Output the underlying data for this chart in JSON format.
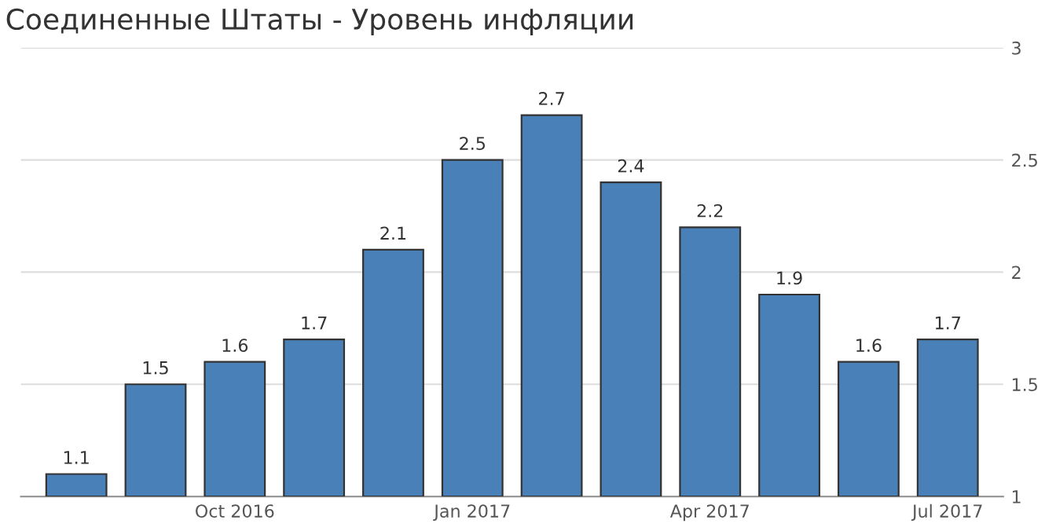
{
  "chart_data": {
    "type": "bar",
    "title": "Соединенные Штаты - Уровень инфляции",
    "categories": [
      null,
      null,
      "Oct 2016",
      null,
      null,
      "Jan 2017",
      null,
      null,
      "Apr 2017",
      null,
      null,
      "Jul 2017"
    ],
    "values": [
      1.1,
      1.5,
      1.6,
      1.7,
      2.1,
      2.5,
      2.7,
      2.4,
      2.2,
      1.9,
      1.6,
      1.7
    ],
    "color": "#4a80b8",
    "ylim": [
      1,
      3
    ],
    "yticks": [
      1,
      1.5,
      2,
      2.5,
      3
    ],
    "grid": "y",
    "data_labels": true
  }
}
